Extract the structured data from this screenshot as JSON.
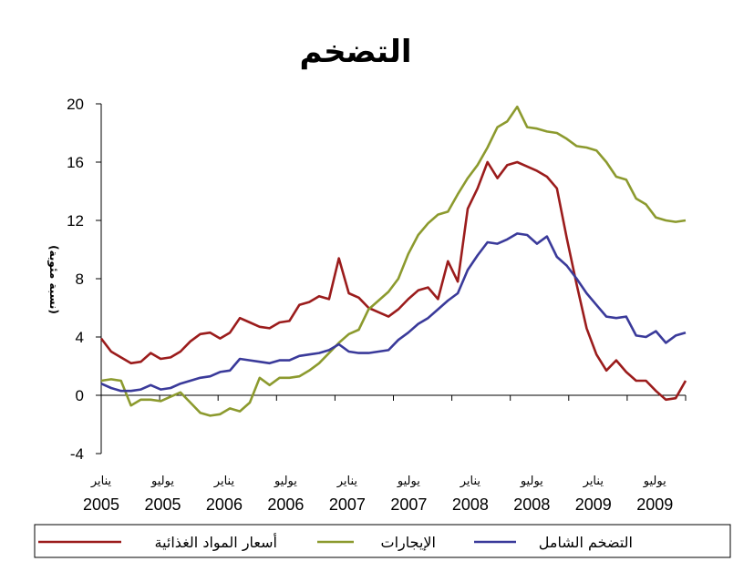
{
  "chart_data": {
    "type": "line",
    "title": "التضخم",
    "ylabel": "(نسبة مئوية)",
    "xlabel": "",
    "ylim": [
      -4,
      20
    ],
    "yticks": [
      -4,
      0,
      4,
      8,
      12,
      16,
      20
    ],
    "xlim": [
      0,
      57
    ],
    "x_tick_labels": [
      {
        "x": 0,
        "month": "يناير",
        "year": "2005"
      },
      {
        "x": 6,
        "month": "يوليو",
        "year": "2005"
      },
      {
        "x": 12,
        "month": "يناير",
        "year": "2006"
      },
      {
        "x": 18,
        "month": "يوليو",
        "year": "2006"
      },
      {
        "x": 24,
        "month": "يناير",
        "year": "2007"
      },
      {
        "x": 30,
        "month": "يوليو",
        "year": "2007"
      },
      {
        "x": 36,
        "month": "يناير",
        "year": "2008"
      },
      {
        "x": 42,
        "month": "يوليو",
        "year": "2008"
      },
      {
        "x": 48,
        "month": "يناير",
        "year": "2009"
      },
      {
        "x": 54,
        "month": "يوليو",
        "year": "2009"
      }
    ],
    "legend_position": "bottom",
    "series": [
      {
        "name": "أسعار المواد الغذائية",
        "color": "#9b1c1c",
        "values": [
          3.9,
          3.0,
          2.6,
          2.2,
          2.3,
          2.9,
          2.5,
          2.6,
          3.0,
          3.7,
          4.2,
          4.3,
          3.9,
          4.3,
          5.3,
          5.0,
          4.7,
          4.6,
          5.0,
          5.1,
          6.2,
          6.4,
          6.8,
          6.6,
          9.4,
          7.0,
          6.7,
          6.0,
          5.7,
          5.4,
          5.9,
          6.6,
          7.2,
          7.4,
          6.6,
          9.2,
          7.8,
          12.8,
          14.2,
          16.0,
          14.9,
          15.8,
          16.0,
          15.7,
          15.4,
          15.0,
          14.2,
          10.8,
          7.6,
          4.6,
          2.8,
          1.7,
          2.4,
          1.6,
          1.0,
          1.0,
          0.3,
          -0.3,
          -0.2,
          1.0
        ]
      },
      {
        "name": "الإيجارات",
        "color": "#8c9a2e",
        "values": [
          1.0,
          1.1,
          1.0,
          -0.7,
          -0.3,
          -0.3,
          -0.4,
          -0.1,
          0.2,
          -0.5,
          -1.2,
          -1.4,
          -1.3,
          -0.9,
          -1.1,
          -0.5,
          1.2,
          0.7,
          1.2,
          1.2,
          1.3,
          1.7,
          2.2,
          2.9,
          3.6,
          4.2,
          4.5,
          5.9,
          6.5,
          7.1,
          8.0,
          9.7,
          11.0,
          11.8,
          12.4,
          12.6,
          13.8,
          14.9,
          15.8,
          17.0,
          18.4,
          18.8,
          19.8,
          18.4,
          18.3,
          18.1,
          18.0,
          17.6,
          17.1,
          17.0,
          16.8,
          16.0,
          15.0,
          14.8,
          13.5,
          13.1,
          12.2,
          12.0,
          11.9,
          12.0
        ]
      },
      {
        "name": "التضخم الشامل",
        "color": "#3a3a9a",
        "values": [
          0.8,
          0.5,
          0.3,
          0.3,
          0.4,
          0.7,
          0.4,
          0.5,
          0.8,
          1.0,
          1.2,
          1.3,
          1.6,
          1.7,
          2.5,
          2.4,
          2.3,
          2.2,
          2.4,
          2.4,
          2.7,
          2.8,
          2.9,
          3.1,
          3.5,
          3.0,
          2.9,
          2.9,
          3.0,
          3.1,
          3.8,
          4.3,
          4.9,
          5.3,
          5.9,
          6.5,
          7.0,
          8.6,
          9.6,
          10.5,
          10.4,
          10.7,
          11.1,
          11.0,
          10.4,
          10.9,
          9.5,
          8.9,
          8.0,
          7.0,
          6.2,
          5.4,
          5.3,
          5.4,
          4.1,
          4.0,
          4.4,
          3.6,
          4.1,
          4.3
        ]
      }
    ]
  }
}
